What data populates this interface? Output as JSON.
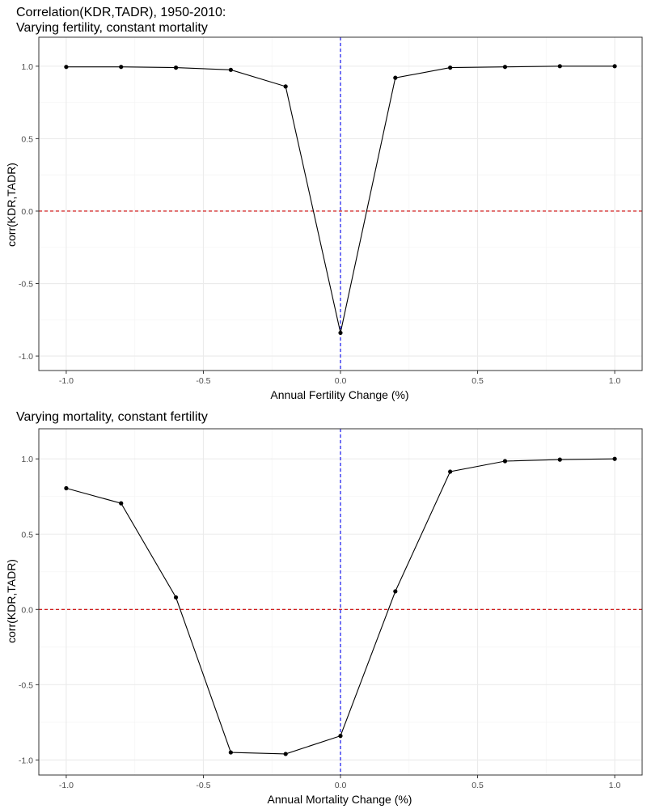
{
  "chart_data": [
    {
      "type": "line",
      "title": "Correlation(KDR,TADR), 1950-2010:",
      "subtitle": "Varying fertility, constant mortality",
      "xlabel": "Annual Fertility Change (%)",
      "ylabel": "corr(KDR,TADR)",
      "xlim": [
        -1.1,
        1.1
      ],
      "ylim": [
        -1.1,
        1.2
      ],
      "x_ticks": [
        -1.0,
        -0.5,
        0.0,
        0.5,
        1.0
      ],
      "x_tick_labels": [
        "-1.0",
        "-0.5",
        "0.0",
        "0.5",
        "1.0"
      ],
      "y_ticks": [
        -1.0,
        -0.5,
        0.0,
        0.5,
        1.0
      ],
      "y_tick_labels": [
        "-1.0",
        "-0.5",
        "0.0",
        "0.5",
        "1.0"
      ],
      "grid": true,
      "x": [
        -1.0,
        -0.8,
        -0.6,
        -0.4,
        -0.2,
        0.0,
        0.2,
        0.4,
        0.6,
        0.8,
        1.0
      ],
      "y": [
        0.995,
        0.995,
        0.99,
        0.975,
        0.86,
        -0.84,
        0.92,
        0.99,
        0.995,
        1.0,
        1.0
      ],
      "reference_lines": [
        {
          "orientation": "horizontal",
          "value": 0.0,
          "style": "dashed",
          "color": "#cc0000"
        },
        {
          "orientation": "vertical",
          "value": 0.0,
          "style": "dashed",
          "color": "#0000ee"
        }
      ]
    },
    {
      "type": "line",
      "title": "Varying mortality, constant fertility",
      "xlabel": "Annual Mortality Change (%)",
      "ylabel": "corr(KDR,TADR)",
      "xlim": [
        -1.1,
        1.1
      ],
      "ylim": [
        -1.1,
        1.2
      ],
      "x_ticks": [
        -1.0,
        -0.5,
        0.0,
        0.5,
        1.0
      ],
      "x_tick_labels": [
        "-1.0",
        "-0.5",
        "0.0",
        "0.5",
        "1.0"
      ],
      "y_ticks": [
        -1.0,
        -0.5,
        0.0,
        0.5,
        1.0
      ],
      "y_tick_labels": [
        "-1.0",
        "-0.5",
        "0.0",
        "0.5",
        "1.0"
      ],
      "grid": true,
      "x": [
        -1.0,
        -0.8,
        -0.6,
        -0.4,
        -0.2,
        0.0,
        0.2,
        0.4,
        0.6,
        0.8,
        1.0
      ],
      "y": [
        0.805,
        0.705,
        0.08,
        -0.95,
        -0.96,
        -0.84,
        0.12,
        0.915,
        0.985,
        0.995,
        1.0
      ],
      "reference_lines": [
        {
          "orientation": "horizontal",
          "value": 0.0,
          "style": "dashed",
          "color": "#cc0000"
        },
        {
          "orientation": "vertical",
          "value": 0.0,
          "style": "dashed",
          "color": "#0000ee"
        }
      ]
    }
  ],
  "colors": {
    "line": "#000000",
    "points": "#000000",
    "grid_major": "#ebebeb",
    "grid_minor": "#f5f5f5",
    "panel_border": "#333333",
    "tick_text": "#4d4d4d"
  }
}
